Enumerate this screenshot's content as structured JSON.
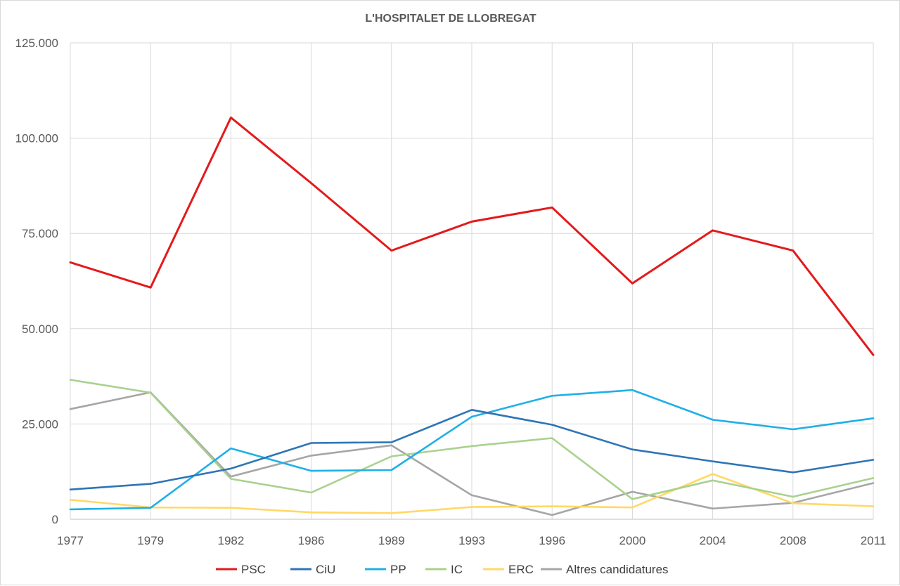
{
  "chart_data": {
    "type": "line",
    "title": "L'HOSPITALET DE LLOBREGAT",
    "xlabel": "",
    "ylabel": "",
    "categories": [
      "1977",
      "1979",
      "1982",
      "1986",
      "1989",
      "1993",
      "1996",
      "2000",
      "2004",
      "2008",
      "2011"
    ],
    "ylim": [
      0,
      125000
    ],
    "yticks": [
      0,
      25000,
      50000,
      75000,
      100000,
      125000
    ],
    "ytick_labels": [
      "0",
      "25.000",
      "50.000",
      "75.000",
      "100.000",
      "125.000"
    ],
    "grid": true,
    "legend_position": "bottom",
    "series": [
      {
        "name": "PSC",
        "color": "#e31a1c",
        "values": [
          67400,
          60800,
          105400,
          88200,
          70500,
          78100,
          81800,
          61900,
          75800,
          70500,
          43100
        ]
      },
      {
        "name": "CiU",
        "color": "#2e75b6",
        "values": [
          7800,
          9300,
          13300,
          20000,
          20200,
          28700,
          24800,
          18300,
          15200,
          12300,
          15600
        ]
      },
      {
        "name": "PP",
        "color": "#1fb0e6",
        "values": [
          2600,
          3000,
          18600,
          12700,
          12900,
          26900,
          32400,
          33900,
          26100,
          23600,
          26500
        ]
      },
      {
        "name": "IC",
        "color": "#a9d18e",
        "values": [
          36600,
          33200,
          10600,
          7000,
          16500,
          19200,
          21300,
          5300,
          10200,
          5900,
          10800
        ]
      },
      {
        "name": "ERC",
        "color": "#ffd966",
        "values": [
          5100,
          3100,
          3000,
          1800,
          1600,
          3200,
          3400,
          3100,
          11900,
          4200,
          3400
        ]
      },
      {
        "name": "Altres candidatures",
        "color": "#a6a6a6",
        "values": [
          28900,
          33300,
          11200,
          16700,
          19400,
          6300,
          1100,
          7200,
          2800,
          4300,
          9500
        ]
      }
    ]
  }
}
